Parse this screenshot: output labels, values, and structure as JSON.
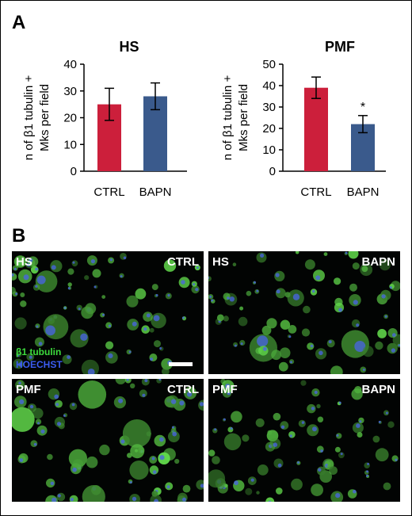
{
  "panel_a_label": "A",
  "panel_b_label": "B",
  "chart_data": [
    {
      "type": "bar",
      "title": "HS",
      "ylabel": [
        "n of β1 tubulin +",
        "Mks per field"
      ],
      "categories": [
        "CTRL",
        "BAPN"
      ],
      "values": [
        25,
        28
      ],
      "error": [
        6,
        5
      ],
      "ylim": [
        0,
        40
      ],
      "yticks": [
        0,
        10,
        20,
        30,
        40
      ],
      "significance": [
        "",
        ""
      ],
      "colors": [
        "#cc1f3b",
        "#3a5a8c"
      ],
      "grid": false
    },
    {
      "type": "bar",
      "title": "PMF",
      "ylabel": [
        "n of β1 tubulin +",
        "Mks per field"
      ],
      "categories": [
        "CTRL",
        "BAPN"
      ],
      "values": [
        39,
        22
      ],
      "error": [
        5,
        4
      ],
      "ylim": [
        0,
        50
      ],
      "yticks": [
        0,
        10,
        20,
        30,
        40,
        50
      ],
      "significance": [
        "",
        "*"
      ],
      "colors": [
        "#cc1f3b",
        "#3a5a8c"
      ],
      "grid": false
    }
  ],
  "micrographs": [
    {
      "left_label": "HS",
      "right_label": "CTRL"
    },
    {
      "left_label": "HS",
      "right_label": "BAPN"
    },
    {
      "left_label": "PMF",
      "right_label": "CTRL"
    },
    {
      "left_label": "PMF",
      "right_label": "BAPN"
    }
  ],
  "legend": {
    "stain_green": "β1 tubulin",
    "stain_blue": "HOECHST"
  },
  "colors": {
    "stain_green": "#3ddc3d",
    "stain_blue": "#3b5cf0"
  }
}
